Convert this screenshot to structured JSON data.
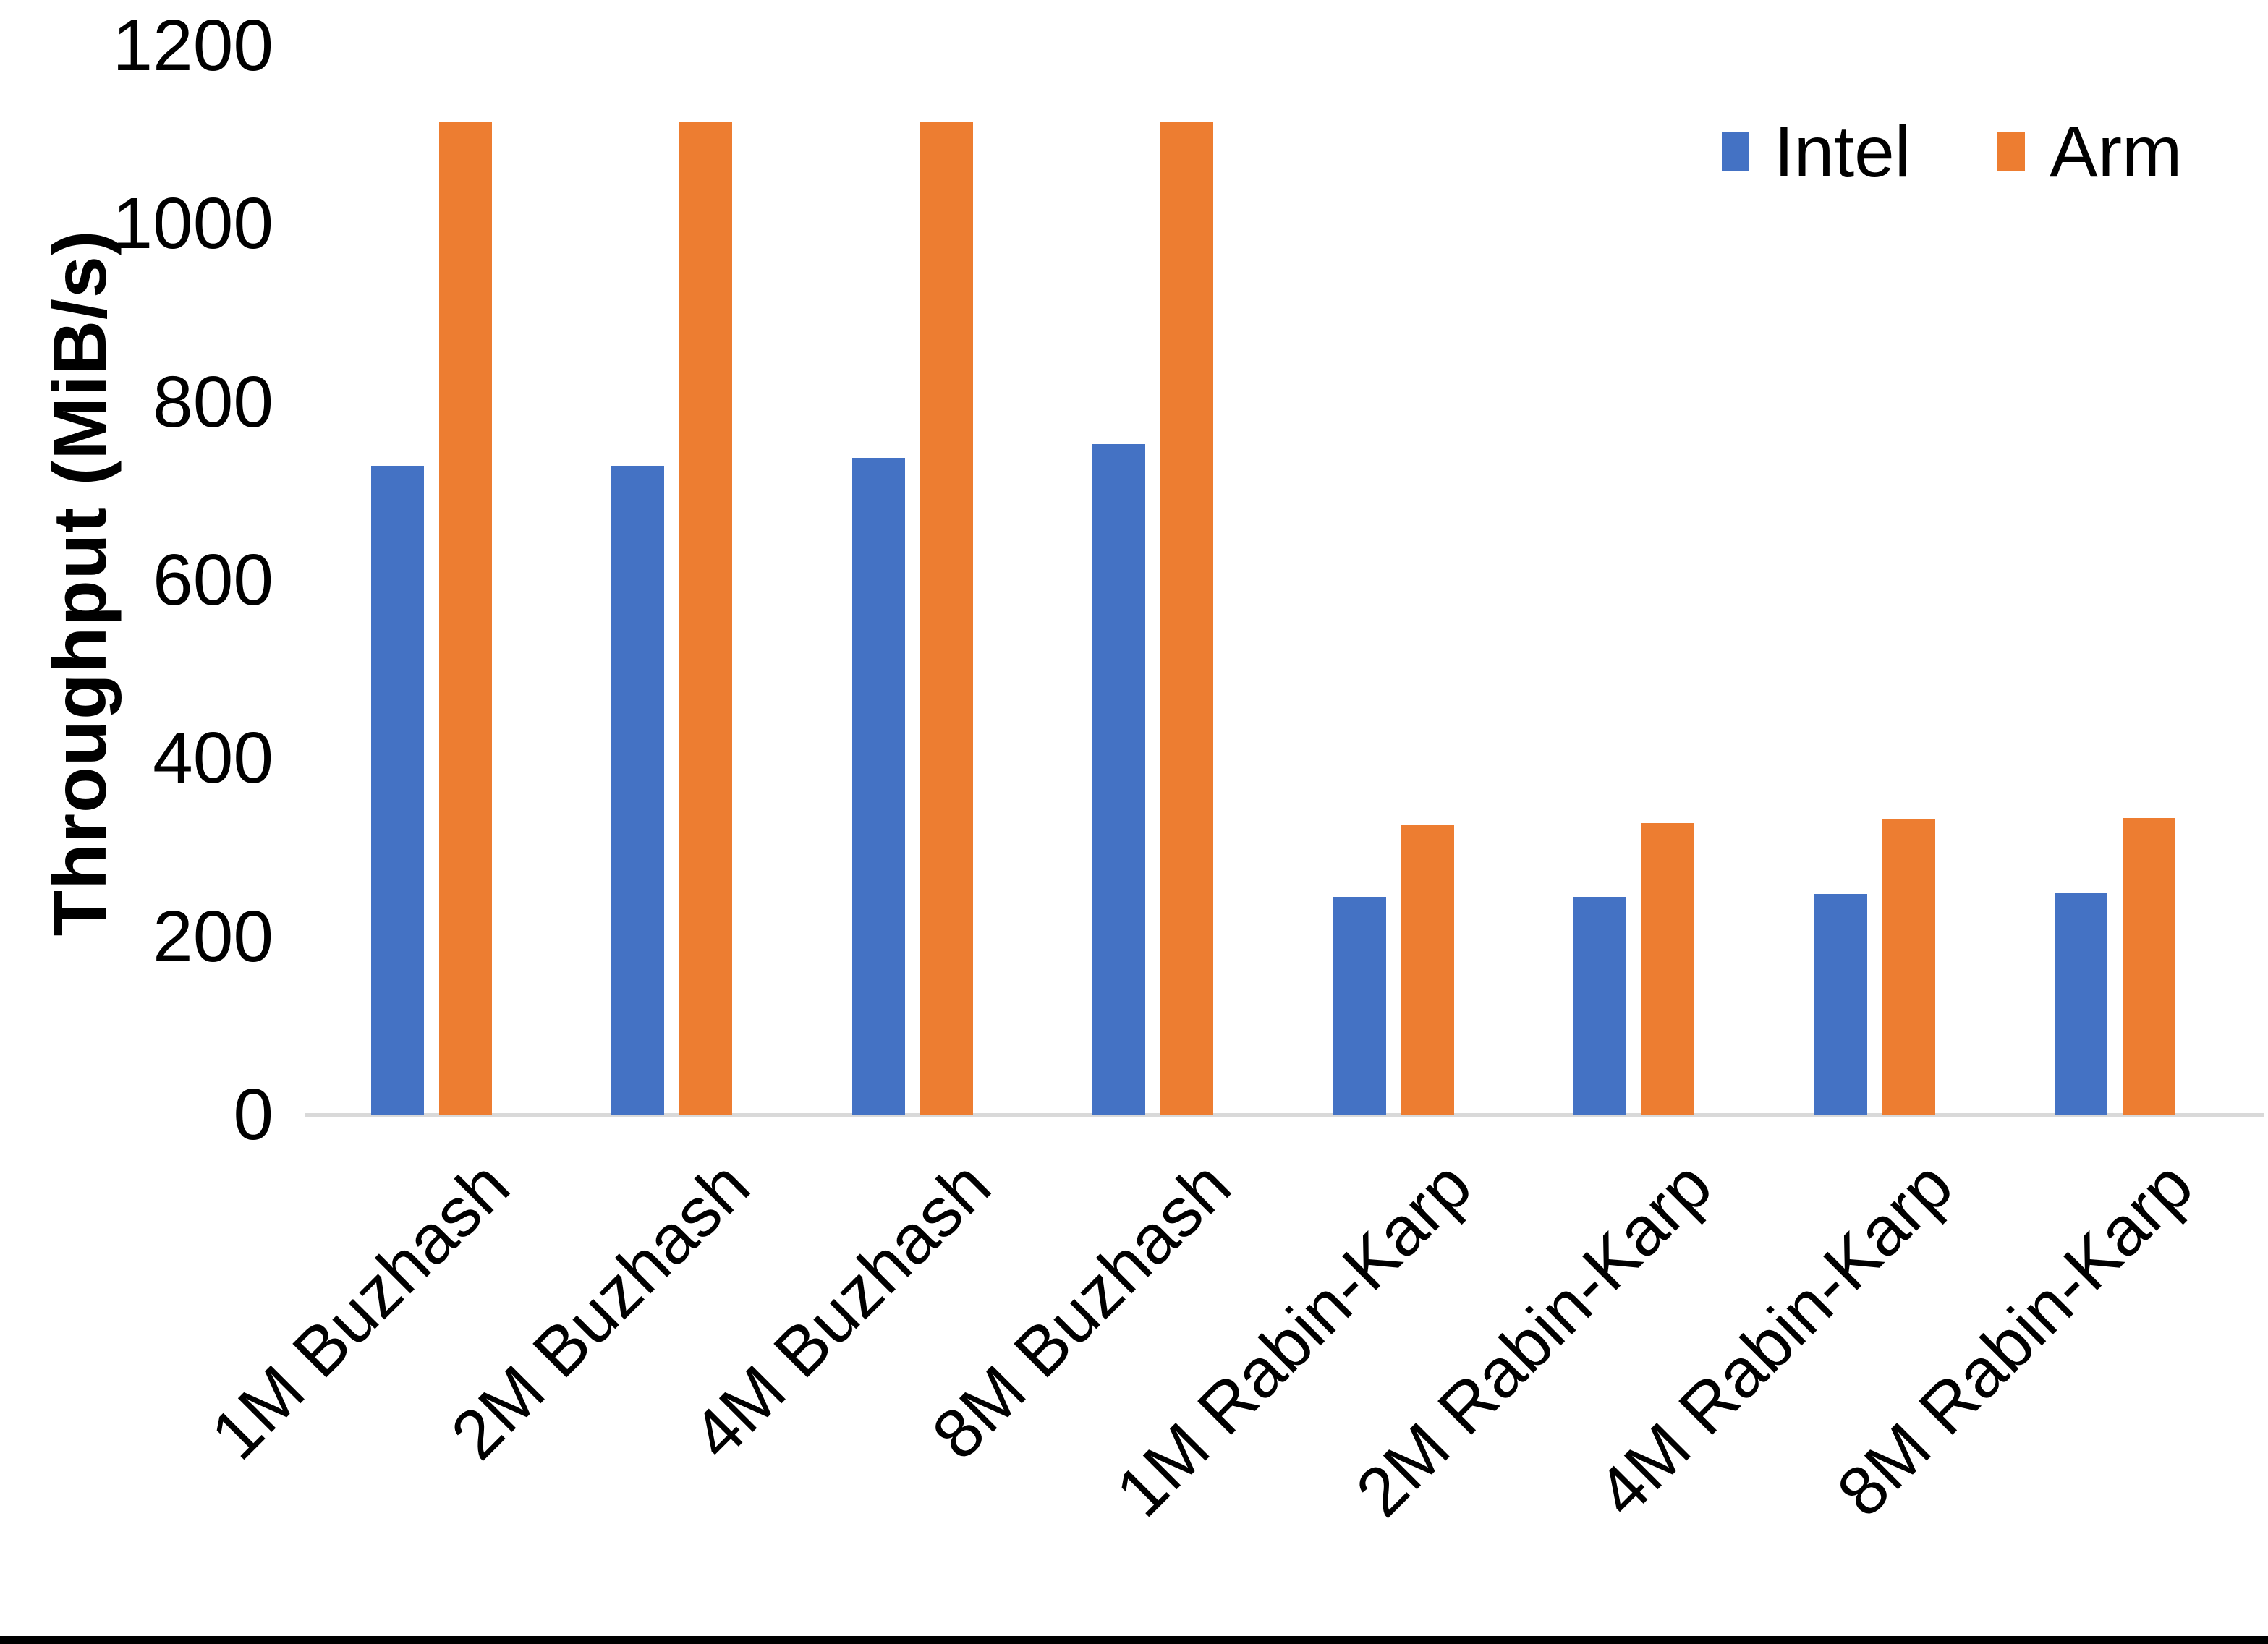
{
  "chart_data": {
    "type": "bar",
    "title": "",
    "ylabel": "Throughput (MiB/s)",
    "xlabel": "",
    "ylim": [
      0,
      1200
    ],
    "yticks": [
      0,
      200,
      400,
      600,
      800,
      1000,
      1200
    ],
    "grid": false,
    "legend_position": "top-right",
    "categories": [
      "1M Buzhash",
      "2M Buzhash",
      "4M Buzhash",
      "8M Buzhash",
      "1M Rabin-Karp",
      "2M Rabin-Karp",
      "4M Rabin-Karp",
      "8M Rabin-Karp"
    ],
    "series": [
      {
        "name": "Intel",
        "color": "#4472C4",
        "values": [
          728,
          728,
          737,
          753,
          244,
          244,
          248,
          249
        ]
      },
      {
        "name": "Arm",
        "color": "#ED7D31",
        "values": [
          1115,
          1115,
          1115,
          1115,
          325,
          327,
          331,
          333
        ]
      }
    ]
  },
  "axis": {
    "line_color": "#d9d9d9",
    "text_color": "#000000"
  }
}
